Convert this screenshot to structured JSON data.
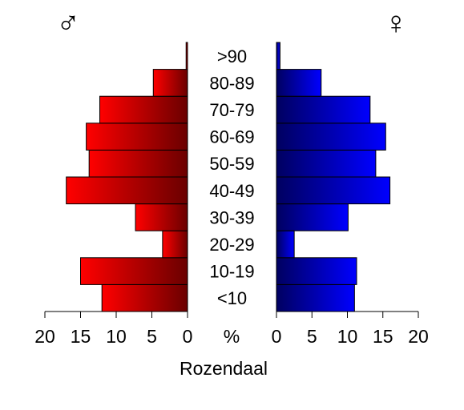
{
  "chart_data": {
    "type": "bar",
    "subtype": "population-pyramid",
    "xlabel": "Rozendaal",
    "center_label": "%",
    "categories": [
      "<10",
      "10-19",
      "20-29",
      "30-39",
      "40-49",
      "50-59",
      "60-69",
      "70-79",
      "80-89",
      ">90"
    ],
    "series": [
      {
        "symbol": "♂",
        "side": "left",
        "color_dark": "#6a0000",
        "color_light": "#ff0000",
        "values": [
          12.0,
          15.0,
          3.5,
          7.3,
          17.0,
          13.8,
          14.2,
          12.3,
          4.8,
          0.2
        ]
      },
      {
        "symbol": "♀",
        "side": "right",
        "color_dark": "#000060",
        "color_light": "#0000ff",
        "values": [
          11.0,
          11.3,
          2.5,
          10.1,
          16.0,
          14.0,
          15.4,
          13.2,
          6.3,
          0.5
        ]
      }
    ],
    "xlim": [
      0,
      20
    ],
    "ticks": [
      0,
      5,
      10,
      15,
      20
    ],
    "tick_labels": [
      "0",
      "5",
      "10",
      "15",
      "20"
    ],
    "grid": false,
    "legend": "none"
  }
}
